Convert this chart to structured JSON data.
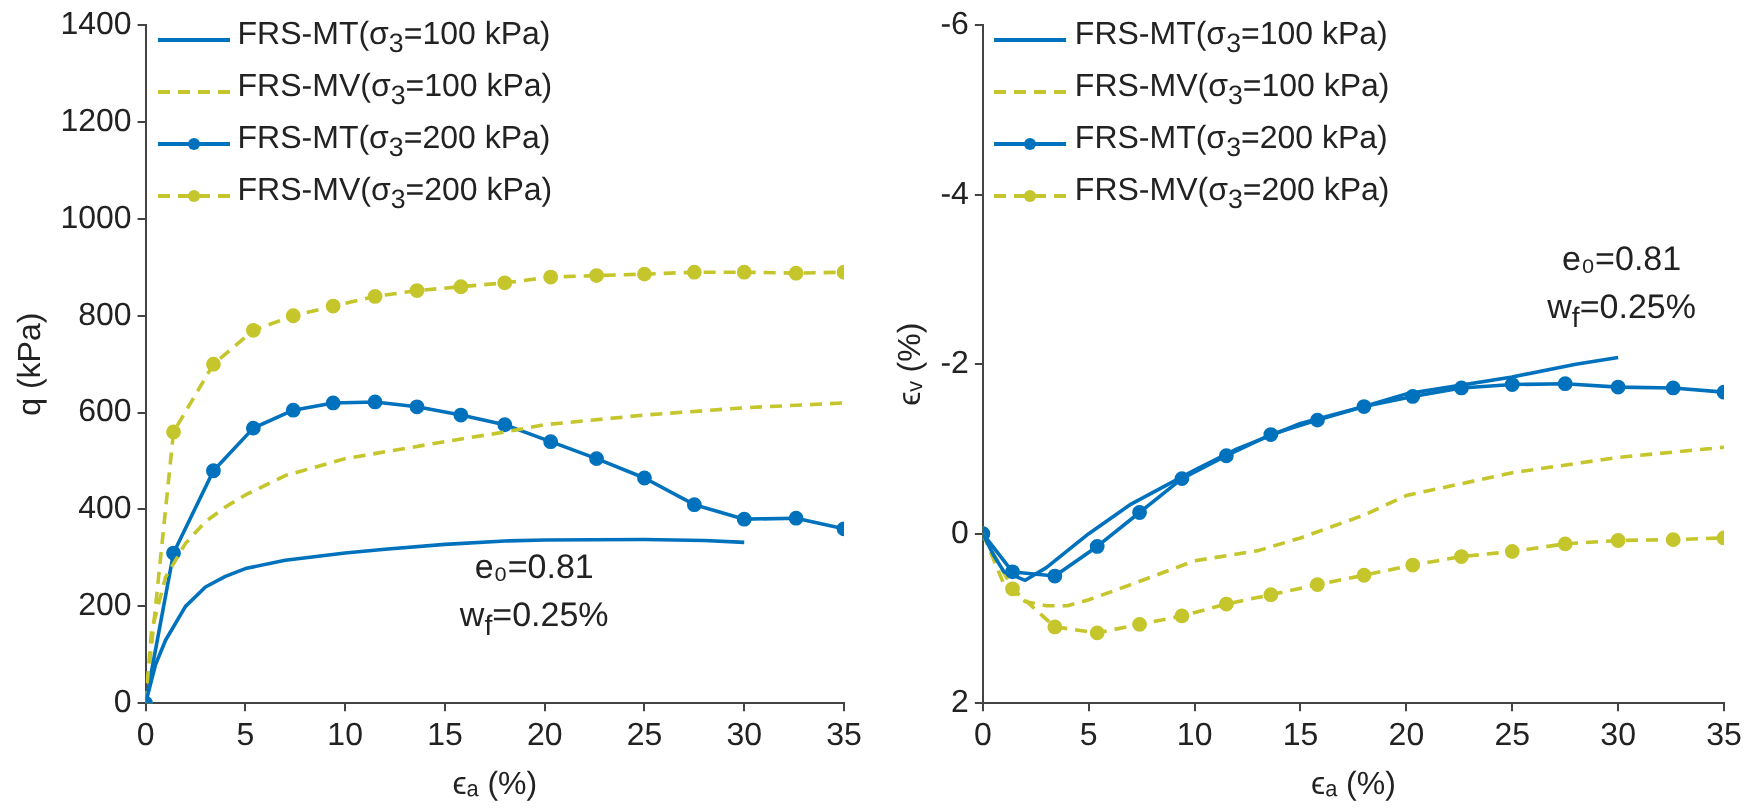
{
  "chart_data": [
    {
      "type": "line",
      "xlabel": "ϵₐ (%)",
      "ylabel": "q (kPa)",
      "xlim": [
        0,
        35
      ],
      "xticks": [
        0,
        5,
        10,
        15,
        20,
        25,
        30,
        35
      ],
      "ylim": [
        0,
        1400
      ],
      "yticks": [
        0,
        200,
        400,
        600,
        800,
        1000,
        1200,
        1400
      ],
      "legend": "top left",
      "annotations": [
        "e₀=0.81",
        "w$_{f}$=0.25%"
      ],
      "series": [
        {
          "name": "FRS-MT(σ$_{3}$=100 kPa)",
          "color": "#0072bd",
          "line_style": "solid",
          "marker": "none",
          "x": [
            0,
            0.5,
            1,
            2,
            3,
            4,
            5,
            7,
            10,
            12,
            15,
            18,
            20,
            25,
            28,
            30
          ],
          "values": [
            0,
            80,
            130,
            200,
            240,
            262,
            278,
            295,
            310,
            318,
            328,
            335,
            337,
            338,
            336,
            332
          ]
        },
        {
          "name": "FRS-MV(σ$_{3}$=100 kPa)",
          "color": "#c5c52c",
          "line_style": "dashed",
          "marker": "none",
          "x": [
            0,
            0.3,
            1,
            2,
            3,
            4,
            5,
            7,
            10,
            15,
            18,
            20,
            25,
            30,
            35
          ],
          "values": [
            0,
            150,
            260,
            330,
            375,
            405,
            430,
            470,
            505,
            540,
            560,
            575,
            595,
            610,
            620
          ]
        },
        {
          "name": "FRS-MT(σ$_{3}$=200 kPa)",
          "color": "#0072bd",
          "line_style": "solid",
          "marker": "circle",
          "x": [
            0,
            1.4,
            3.4,
            5.4,
            7.4,
            9.4,
            11.5,
            13.6,
            15.8,
            18,
            20.3,
            22.6,
            25,
            27.5,
            30,
            32.6,
            35
          ],
          "values": [
            0,
            310,
            480,
            568,
            605,
            620,
            622,
            612,
            595,
            575,
            540,
            505,
            465,
            410,
            380,
            382,
            360
          ]
        },
        {
          "name": "FRS-MV(σ$_{3}$=200 kPa)",
          "color": "#c5c52c",
          "line_style": "dashed",
          "marker": "circle",
          "x": [
            0,
            1.4,
            3.4,
            5.4,
            7.4,
            9.4,
            11.5,
            13.6,
            15.8,
            18,
            20.3,
            22.6,
            25,
            27.5,
            30,
            32.6,
            35
          ],
          "values": [
            0,
            560,
            700,
            770,
            800,
            820,
            840,
            852,
            860,
            868,
            880,
            883,
            886,
            890,
            890,
            888,
            890
          ]
        }
      ]
    },
    {
      "type": "line",
      "xlabel": "ϵₐ (%)",
      "ylabel": "ϵᵥ (%)",
      "xlim": [
        0,
        35
      ],
      "xticks": [
        0,
        5,
        10,
        15,
        20,
        25,
        30,
        35
      ],
      "ylim": [
        2,
        -6
      ],
      "yticks": [
        2,
        0,
        -2,
        -4,
        -6
      ],
      "legend": "top left",
      "annotations": [
        "e₀=0.81",
        "w$_{f}$=0.25%"
      ],
      "series": [
        {
          "name": "FRS-MT(σ$_{3}$=100 kPa)",
          "color": "#0072bd",
          "line_style": "solid",
          "marker": "none",
          "x": [
            0,
            0.5,
            1,
            2,
            3,
            4,
            5,
            7,
            10,
            12,
            15,
            18,
            20,
            25,
            28,
            30
          ],
          "values": [
            0,
            0.25,
            0.45,
            0.55,
            0.4,
            0.2,
            0,
            -0.35,
            -0.75,
            -1.0,
            -1.3,
            -1.5,
            -1.65,
            -1.85,
            -2.0,
            -2.08
          ]
        },
        {
          "name": "FRS-MV(σ$_{3}$=100 kPa)",
          "color": "#c5c52c",
          "line_style": "dashed",
          "marker": "none",
          "x": [
            0,
            1,
            2,
            3,
            4,
            5,
            7,
            10,
            13,
            15,
            18,
            20,
            25,
            30,
            35
          ],
          "values": [
            0,
            0.6,
            0.8,
            0.85,
            0.85,
            0.78,
            0.6,
            0.32,
            0.2,
            0.05,
            -0.22,
            -0.45,
            -0.72,
            -0.9,
            -1.02
          ]
        },
        {
          "name": "FRS-MT(σ$_{3}$=200 kPa)",
          "color": "#0072bd",
          "line_style": "solid",
          "marker": "circle",
          "x": [
            0,
            1.4,
            3.4,
            5.4,
            7.4,
            9.4,
            11.5,
            13.6,
            15.8,
            18,
            20.3,
            22.6,
            25,
            27.5,
            30,
            32.6,
            35
          ],
          "values": [
            0,
            0.45,
            0.5,
            0.15,
            -0.25,
            -0.65,
            -0.92,
            -1.17,
            -1.34,
            -1.5,
            -1.62,
            -1.72,
            -1.76,
            -1.77,
            -1.73,
            -1.72,
            -1.67
          ]
        },
        {
          "name": "FRS-MV(σ$_{3}$=200 kPa)",
          "color": "#c5c52c",
          "line_style": "dashed",
          "marker": "circle",
          "x": [
            0,
            1.4,
            3.4,
            5.4,
            7.4,
            9.4,
            11.5,
            13.6,
            15.8,
            18,
            20.3,
            22.6,
            25,
            27.5,
            30,
            32.6,
            35
          ],
          "values": [
            0,
            0.65,
            1.1,
            1.17,
            1.07,
            0.97,
            0.83,
            0.72,
            0.6,
            0.49,
            0.37,
            0.27,
            0.21,
            0.12,
            0.08,
            0.07,
            0.05
          ]
        }
      ]
    }
  ]
}
